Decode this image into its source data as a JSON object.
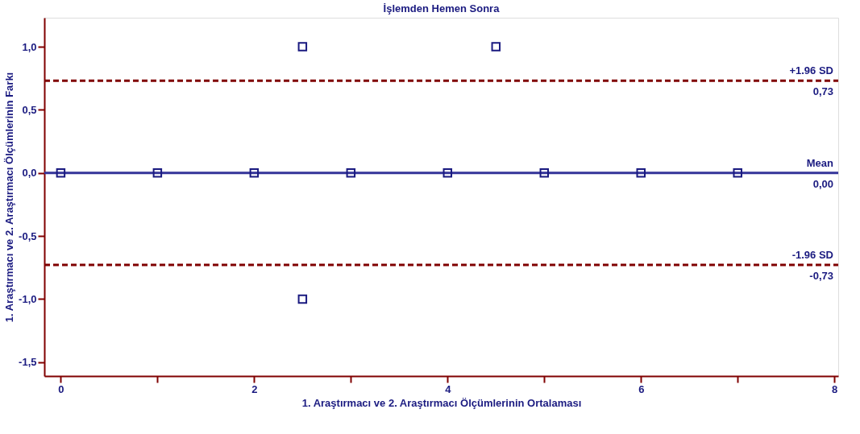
{
  "chart_data": {
    "type": "scatter",
    "title": "İşlemden Hemen Sonra",
    "xlabel": "1. Araştırmacı ve 2. Araştırmacı Ölçümlerinin Ortalaması",
    "ylabel": "1. Araştırmacı ve 2. Araştırmacı Ölçümlerinin Farkı",
    "x": [
      0,
      1,
      2,
      2.5,
      2.5,
      3,
      4,
      4.5,
      5,
      6,
      7
    ],
    "series": [
      {
        "color": "#1a1a80",
        "values": [
          0,
          0,
          0,
          1,
          -1,
          0,
          0,
          1,
          0,
          0,
          0
        ]
      }
    ],
    "marker": "square",
    "grid": false,
    "xlim": [
      -0.17,
      8.04
    ],
    "ylim": [
      -1.61,
      1.23
    ],
    "xticks": [
      0,
      {
        "value": 1,
        "label": null
      },
      2,
      {
        "value": 3,
        "label": null
      },
      4,
      {
        "value": 5,
        "label": null
      },
      6,
      {
        "value": 7,
        "label": null
      },
      8
    ],
    "yticks": [
      {
        "value": -1.5,
        "label": "-1,5"
      },
      {
        "value": -1,
        "label": "-1,0"
      },
      {
        "value": -0.5,
        "label": "-0,5"
      },
      {
        "value": 0,
        "label": "0,0"
      },
      {
        "value": 0.5,
        "label": "0,5"
      },
      {
        "value": 1,
        "label": "1,0"
      }
    ],
    "ref_lines": [
      {
        "axis": "y",
        "value": 0.73,
        "label": "+1.96 SD",
        "color": "#800000",
        "line_style": "dashed"
      },
      {
        "axis": "y",
        "value": 0,
        "label": "Mean",
        "color": "#333399",
        "line_style": "solid"
      },
      {
        "axis": "y",
        "value": -0.73,
        "label": "-1.96 SD",
        "color": "#800000",
        "line_style": "dashed"
      }
    ],
    "annotations": [
      "0,73",
      "0,00",
      "-0,73"
    ]
  }
}
